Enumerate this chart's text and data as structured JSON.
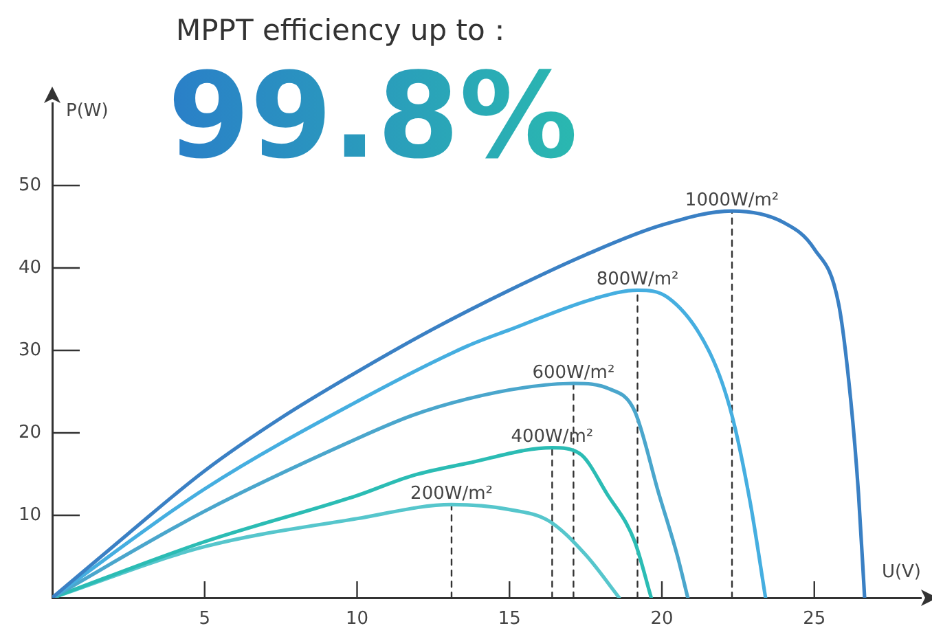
{
  "chart_data": {
    "type": "line",
    "title": "MPPT efficiency up to：",
    "subtitle": "99.8%",
    "xlabel": "U(V)",
    "ylabel": "P(W)",
    "xlim": [
      0,
      28.5
    ],
    "xticks": [
      5,
      10,
      15,
      20,
      25
    ],
    "ylim": [
      0,
      60
    ],
    "yticks": [
      10,
      20,
      30,
      40,
      50
    ],
    "marker": "none",
    "legend": false,
    "series": [
      {
        "name": "1000W/m²",
        "color": "#3a80c4",
        "x": [
          0,
          2.5,
          5,
          7.5,
          10,
          12.5,
          15,
          17.5,
          20,
          22.3,
          24,
          25,
          25.8,
          26.2,
          26.45,
          26.65
        ],
        "values": [
          0,
          7.8,
          15.4,
          21.8,
          27.4,
          32.6,
          37.3,
          41.6,
          45.2,
          46.9,
          45.5,
          42.3,
          35.6,
          23.8,
          12.6,
          0
        ]
      },
      {
        "name": "800W/m²",
        "color": "#45aee0",
        "x": [
          0,
          5,
          10,
          13.6,
          15,
          17.8,
          19.2,
          20.2,
          21.6,
          22.3,
          22.9,
          23.4
        ],
        "values": [
          0,
          13.2,
          23.8,
          30.5,
          32.5,
          36.3,
          37.3,
          36.4,
          29.5,
          22.1,
          11.5,
          0
        ]
      },
      {
        "name": "600W/m²",
        "color": "#4aa6cc",
        "x": [
          0,
          5,
          10,
          11.8,
          13.6,
          15.5,
          17.1,
          18.3,
          19.1,
          19.9,
          20.5,
          20.85
        ],
        "values": [
          0,
          10.5,
          19.3,
          22.1,
          24.1,
          25.5,
          26,
          25.3,
          22.7,
          12.6,
          5.2,
          0
        ]
      },
      {
        "name": "400W/m²",
        "color": "#2bbcb4",
        "x": [
          0,
          5,
          10,
          11.8,
          13.6,
          16.4,
          17.3,
          18.2,
          19.1,
          19.65
        ],
        "values": [
          0,
          6.8,
          12.4,
          14.8,
          16.3,
          18.2,
          17.5,
          12.6,
          6.9,
          0
        ]
      },
      {
        "name": "200W/m²",
        "color": "#56c6cc",
        "x": [
          0,
          5,
          10,
          13.1,
          15,
          16.3,
          17.5,
          18.6
        ],
        "values": [
          0,
          6.2,
          9.6,
          11.3,
          10.7,
          9.3,
          5.2,
          0
        ]
      },
      {
        "color": "#333333",
        "line_style": "dashed",
        "x": [
          22.3,
          22.3
        ],
        "values": [
          0,
          46.9
        ]
      },
      {
        "color": "#333333",
        "line_style": "dashed",
        "x": [
          19.2,
          19.2
        ],
        "values": [
          0,
          37.3
        ]
      },
      {
        "color": "#333333",
        "line_style": "dashed",
        "x": [
          17.1,
          17.1
        ],
        "values": [
          0,
          26
        ]
      },
      {
        "color": "#333333",
        "line_style": "dashed",
        "x": [
          16.4,
          16.4
        ],
        "values": [
          0,
          18.2
        ]
      },
      {
        "color": "#333333",
        "line_style": "dashed",
        "x": [
          13.1,
          13.1
        ],
        "values": [
          0,
          11.3
        ]
      }
    ]
  }
}
